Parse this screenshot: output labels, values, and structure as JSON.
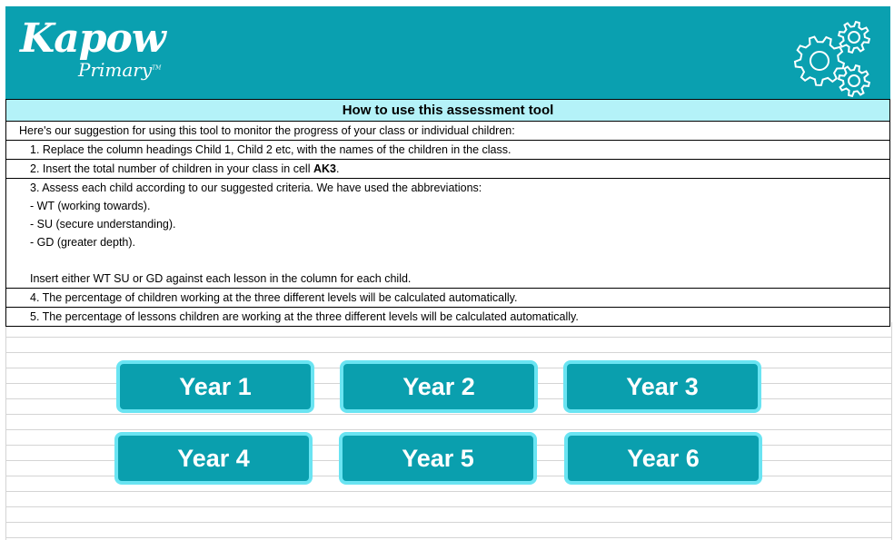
{
  "brand": {
    "logo_main": "Kapow",
    "logo_sub": "Primary",
    "trademark": "TM",
    "header_color": "#0aa0b0",
    "icon": "gears-icon"
  },
  "instructions": {
    "title": "How to use this assessment tool",
    "intro": "Here's our suggestion for using this tool to monitor the progress of your class or individual children:",
    "step1": "1. Replace the column headings Child 1, Child 2 etc, with the names of the children in the class.",
    "step2_prefix": "2.  Insert the total number of children in your class in cell ",
    "step2_cell": "AK3",
    "step2_suffix": ".",
    "step3_lines": [
      "3.  Assess each child according to our suggested criteria.  We have used the abbreviations:",
      "- WT (working towards).",
      "- SU (secure understanding).",
      "- GD (greater depth).",
      "",
      "Insert either WT SU or GD against each lesson in the column for each child."
    ],
    "step4": "4.  The percentage of children working at the three different levels will be calculated automatically.",
    "step5": "5. The percentage of lessons children are working at the three different levels will be calculated automatically."
  },
  "year_buttons": [
    "Year 1",
    "Year 2",
    "Year 3",
    "Year 4",
    "Year 5",
    "Year 6"
  ],
  "colors": {
    "title_bg": "#b4f2f8",
    "button_bg": "#0a9fae",
    "button_border": "#6ae4f2"
  }
}
